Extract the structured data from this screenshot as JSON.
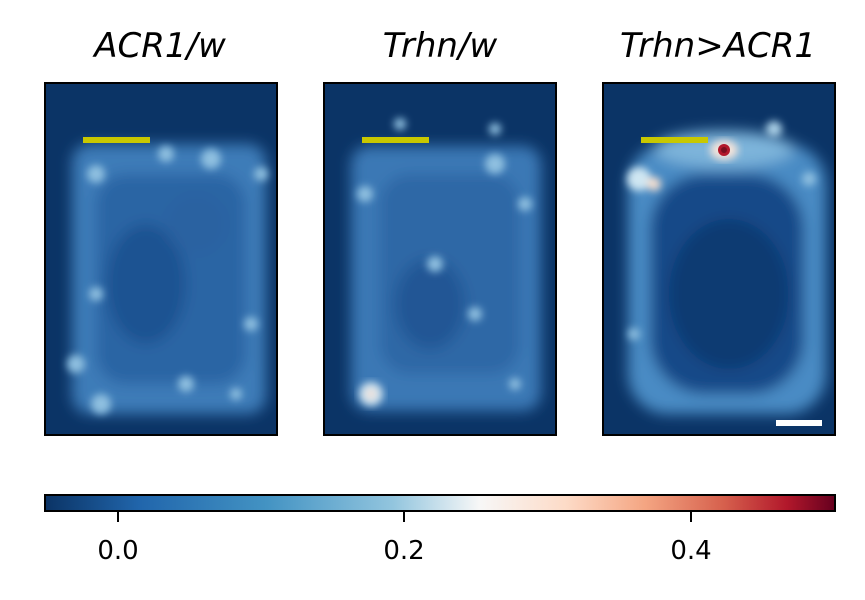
{
  "chart_data": {
    "type": "heatmap",
    "panels": [
      {
        "title": "ACR1/w"
      },
      {
        "title": "Trhn/w"
      },
      {
        "title": "Trhn>ACR1"
      }
    ],
    "colorbar": {
      "colormap": "RdBu_r",
      "range": [
        -0.05,
        0.5
      ],
      "ticks": [
        0.0,
        0.2,
        0.4
      ],
      "tick_labels": [
        "0.0",
        "0.2",
        "0.4"
      ]
    },
    "annotations": {
      "marker_bar_color": "#c8c800",
      "scale_bar_color": "#ffffff"
    }
  },
  "colors": {
    "background_map": "#0b3466",
    "arena_edge": "#4e8fc6",
    "hotspot_light": "#f7e7dc",
    "hotspot_peak": "#b2182b"
  }
}
